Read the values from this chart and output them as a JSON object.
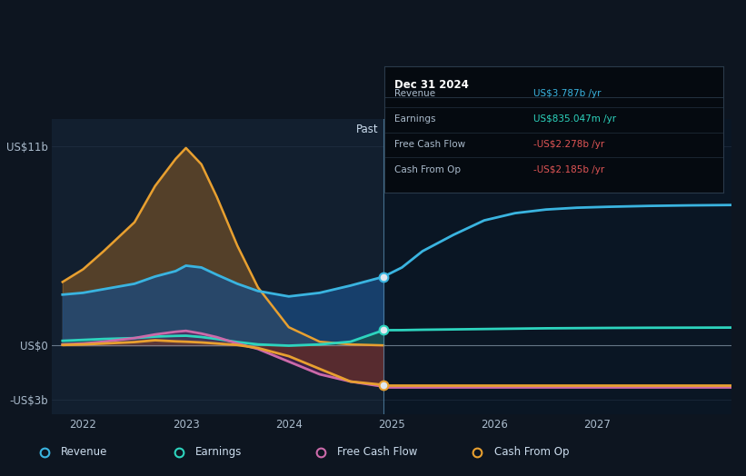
{
  "bg_color": "#0d1520",
  "plot_bg_past": "#162030",
  "plot_bg_forecast": "#0a1520",
  "divider_x": 2024.92,
  "ylim": [
    -3800000000.0,
    12500000000.0
  ],
  "xlim": [
    2021.7,
    2028.3
  ],
  "ytick_vals": [
    -3000000000.0,
    0,
    11000000000.0
  ],
  "ytick_labels": [
    "-US$3b",
    "US$0",
    "US$11b"
  ],
  "xticks": [
    2022,
    2023,
    2024,
    2025,
    2026,
    2027
  ],
  "colors": {
    "revenue": "#3ab4e0",
    "earnings": "#2dd4be",
    "fcf": "#cc6aaa",
    "cashop": "#e8a030"
  },
  "revenue_past_x": [
    2021.8,
    2022.0,
    2022.2,
    2022.5,
    2022.7,
    2022.9,
    2023.0,
    2023.15,
    2023.3,
    2023.5,
    2023.7,
    2024.0,
    2024.3,
    2024.6,
    2024.92
  ],
  "revenue_past_y": [
    2800000000.0,
    2900000000.0,
    3100000000.0,
    3400000000.0,
    3800000000.0,
    4100000000.0,
    4400000000.0,
    4300000000.0,
    3900000000.0,
    3400000000.0,
    3000000000.0,
    2700000000.0,
    2900000000.0,
    3300000000.0,
    3787000000.0
  ],
  "revenue_fore_x": [
    2024.92,
    2025.1,
    2025.3,
    2025.6,
    2025.9,
    2026.2,
    2026.5,
    2026.8,
    2027.1,
    2027.5,
    2027.9,
    2028.3
  ],
  "revenue_fore_y": [
    3787000000.0,
    4300000000.0,
    5200000000.0,
    6100000000.0,
    6900000000.0,
    7300000000.0,
    7500000000.0,
    7600000000.0,
    7650000000.0,
    7700000000.0,
    7730000000.0,
    7750000000.0
  ],
  "earnings_past_x": [
    2021.8,
    2022.0,
    2022.2,
    2022.5,
    2022.7,
    2022.9,
    2023.0,
    2023.15,
    2023.3,
    2023.5,
    2023.7,
    2024.0,
    2024.3,
    2024.6,
    2024.92
  ],
  "earnings_past_y": [
    250000000.0,
    300000000.0,
    350000000.0,
    400000000.0,
    480000000.0,
    520000000.0,
    530000000.0,
    460000000.0,
    350000000.0,
    180000000.0,
    50000000.0,
    -20000000.0,
    50000000.0,
    200000000.0,
    835000000.0
  ],
  "earnings_fore_x": [
    2024.92,
    2025.1,
    2025.3,
    2025.6,
    2025.9,
    2026.2,
    2026.5,
    2026.8,
    2027.1,
    2027.5,
    2027.9,
    2028.3
  ],
  "earnings_fore_y": [
    835000000.0,
    840000000.0,
    860000000.0,
    880000000.0,
    900000000.0,
    920000000.0,
    940000000.0,
    950000000.0,
    960000000.0,
    970000000.0,
    975000000.0,
    980000000.0
  ],
  "fcf_past_x": [
    2021.8,
    2022.0,
    2022.2,
    2022.5,
    2022.7,
    2022.9,
    2023.0,
    2023.15,
    2023.3,
    2023.5,
    2023.7,
    2024.0,
    2024.3,
    2024.6,
    2024.92
  ],
  "fcf_past_y": [
    50000000.0,
    100000000.0,
    200000000.0,
    400000000.0,
    600000000.0,
    750000000.0,
    800000000.0,
    650000000.0,
    450000000.0,
    100000000.0,
    -200000000.0,
    -900000000.0,
    -1600000000.0,
    -2000000000.0,
    -2278000000.0
  ],
  "fcf_fore_x": [
    2024.92,
    2025.3,
    2025.9,
    2026.5,
    2027.1,
    2027.7,
    2028.3
  ],
  "fcf_fore_y": [
    -2278000000.0,
    -2278000000.0,
    -2278000000.0,
    -2278000000.0,
    -2278000000.0,
    -2278000000.0,
    -2278000000.0
  ],
  "cashop_past_x": [
    2021.8,
    2022.0,
    2022.2,
    2022.5,
    2022.7,
    2022.9,
    2023.0,
    2023.15,
    2023.3,
    2023.5,
    2023.7,
    2024.0,
    2024.3,
    2024.6,
    2024.92
  ],
  "cashop_past_y": [
    20000000.0,
    50000000.0,
    100000000.0,
    180000000.0,
    280000000.0,
    220000000.0,
    200000000.0,
    160000000.0,
    100000000.0,
    20000000.0,
    -150000000.0,
    -600000000.0,
    -1300000000.0,
    -2000000000.0,
    -2185000000.0
  ],
  "cashop_fore_x": [
    2024.92,
    2025.3,
    2025.9,
    2026.5,
    2027.1,
    2027.7,
    2028.3
  ],
  "cashop_fore_y": [
    -2185000000.0,
    -2185000000.0,
    -2185000000.0,
    -2185000000.0,
    -2185000000.0,
    -2185000000.0,
    -2185000000.0
  ],
  "orange_area_x": [
    2021.8,
    2022.0,
    2022.2,
    2022.5,
    2022.7,
    2022.9,
    2023.0,
    2023.15,
    2023.3,
    2023.5,
    2023.7,
    2024.0,
    2024.3,
    2024.6,
    2024.92
  ],
  "orange_area_y": [
    3500000000.0,
    4200000000.0,
    5200000000.0,
    6800000000.0,
    8800000000.0,
    10300000000.0,
    10900000000.0,
    10000000000.0,
    8200000000.0,
    5500000000.0,
    3200000000.0,
    1000000000.0,
    200000000.0,
    50000000.0,
    0.0
  ],
  "tooltip": {
    "date": "Dec 31 2024",
    "rows": [
      [
        "Revenue",
        "US$3.787b /yr",
        "#3ab4e0"
      ],
      [
        "Earnings",
        "US$835.047m /yr",
        "#2dd4be"
      ],
      [
        "Free Cash Flow",
        "-US$2.278b /yr",
        "#e05555"
      ],
      [
        "Cash From Op",
        "-US$2.185b /yr",
        "#e05555"
      ]
    ]
  },
  "legend_items": [
    "Revenue",
    "Earnings",
    "Free Cash Flow",
    "Cash From Op"
  ],
  "legend_colors": [
    "#3ab4e0",
    "#2dd4be",
    "#cc6aaa",
    "#e8a030"
  ]
}
